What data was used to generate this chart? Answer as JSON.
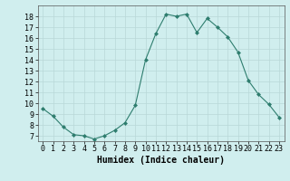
{
  "x": [
    0,
    1,
    2,
    3,
    4,
    5,
    6,
    7,
    8,
    9,
    10,
    11,
    12,
    13,
    14,
    15,
    16,
    17,
    18,
    19,
    20,
    21,
    22,
    23
  ],
  "y": [
    9.5,
    8.8,
    7.8,
    7.1,
    7.0,
    6.7,
    7.0,
    7.5,
    8.2,
    9.8,
    14.0,
    16.4,
    18.2,
    18.0,
    18.2,
    16.5,
    17.8,
    17.0,
    16.1,
    14.7,
    12.1,
    10.8,
    9.9,
    8.7
  ],
  "line_color": "#2e7d6e",
  "marker": "D",
  "marker_size": 2.0,
  "bg_color": "#d0eeee",
  "grid_color": "#b8d8d8",
  "xlabel": "Humidex (Indice chaleur)",
  "xlabel_fontsize": 7,
  "tick_fontsize": 6,
  "ylim": [
    6.5,
    19.0
  ],
  "xlim": [
    -0.5,
    23.5
  ],
  "yticks": [
    7,
    8,
    9,
    10,
    11,
    12,
    13,
    14,
    15,
    16,
    17,
    18
  ],
  "xticks": [
    0,
    1,
    2,
    3,
    4,
    5,
    6,
    7,
    8,
    9,
    10,
    11,
    12,
    13,
    14,
    15,
    16,
    17,
    18,
    19,
    20,
    21,
    22,
    23
  ]
}
